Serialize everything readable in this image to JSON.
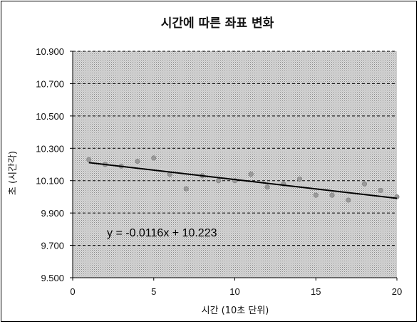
{
  "chart_data": {
    "type": "scatter",
    "title": "시간에 따른 좌표 변화",
    "xlabel": "시간 (10초 단위)",
    "ylabel": "초 (시간각)",
    "xlim": [
      0,
      20
    ],
    "ylim": [
      9.5,
      10.9
    ],
    "x_ticks": [
      0,
      5,
      10,
      15,
      20
    ],
    "x_tick_labels": [
      "0",
      "5",
      "10",
      "15",
      "20"
    ],
    "y_ticks": [
      9.5,
      9.7,
      9.9,
      10.1,
      10.3,
      10.5,
      10.7,
      10.9
    ],
    "y_tick_labels": [
      "9.500",
      "9.700",
      "9.900",
      "10.100",
      "10.300",
      "10.500",
      "10.700",
      "10.900"
    ],
    "grid": true,
    "series": [
      {
        "x": [
          1,
          2,
          3,
          4,
          5,
          6,
          7,
          8,
          9,
          10,
          11,
          12,
          13,
          14,
          15,
          16,
          17,
          18,
          19,
          20
        ],
        "y": [
          10.23,
          10.2,
          10.19,
          10.22,
          10.24,
          10.14,
          10.05,
          10.13,
          10.1,
          10.1,
          10.14,
          10.06,
          10.08,
          10.11,
          10.01,
          10.01,
          9.98,
          10.08,
          10.04,
          10.0
        ]
      }
    ],
    "trendline": {
      "slope": -0.0116,
      "intercept": 10.223
    },
    "annotation": "y = -0.0116x + 10.223"
  }
}
